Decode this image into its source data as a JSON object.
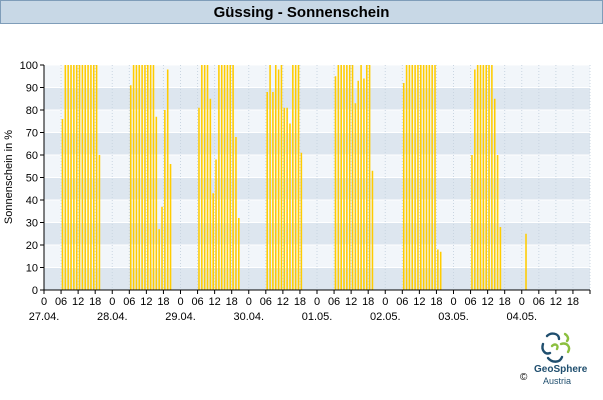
{
  "header": {
    "title": "Güssing - Sonnenschein"
  },
  "logo": {
    "name": "GeoSphere",
    "sub": "Austria",
    "copyright": "©"
  },
  "colors": {
    "bar": "#ffcc00",
    "band_light": "#f2f6fa",
    "band_dark": "#dde6ef",
    "header_bg": "#c8d8e6"
  },
  "chart_data": {
    "type": "bar",
    "title": "Güssing - Sonnenschein",
    "ylabel": "Sonnenschein in %",
    "xlabel": "",
    "ylim": [
      0,
      100
    ],
    "yticks": [
      0,
      10,
      20,
      30,
      40,
      50,
      60,
      70,
      80,
      90,
      100
    ],
    "hour_ticks": [
      "0",
      "06",
      "12",
      "18"
    ],
    "days": [
      "27.04.",
      "28.04.",
      "29.04.",
      "30.04.",
      "01.05.",
      "02.05.",
      "03.05.",
      "04.05."
    ],
    "step_hours": 1,
    "values": [
      0,
      0,
      0,
      0,
      0,
      0,
      76,
      100,
      100,
      100,
      100,
      100,
      100,
      100,
      100,
      100,
      100,
      100,
      100,
      60,
      0,
      0,
      0,
      0,
      0,
      0,
      0,
      0,
      0,
      0,
      91,
      100,
      100,
      100,
      100,
      100,
      100,
      100,
      100,
      77,
      27,
      37,
      80,
      98,
      56,
      0,
      0,
      0,
      0,
      0,
      0,
      0,
      0,
      0,
      81,
      100,
      100,
      100,
      85,
      43,
      58,
      100,
      100,
      100,
      100,
      100,
      100,
      68,
      32,
      0,
      0,
      0,
      0,
      0,
      0,
      0,
      0,
      0,
      88,
      100,
      88,
      100,
      98,
      100,
      81,
      81,
      74,
      100,
      100,
      100,
      61,
      0,
      0,
      0,
      0,
      0,
      0,
      0,
      0,
      0,
      0,
      0,
      95,
      100,
      100,
      100,
      100,
      100,
      100,
      83,
      93,
      100,
      94,
      100,
      100,
      53,
      0,
      0,
      0,
      0,
      0,
      0,
      0,
      0,
      0,
      0,
      92,
      100,
      100,
      100,
      100,
      100,
      100,
      100,
      100,
      100,
      100,
      100,
      18,
      17,
      0,
      0,
      0,
      0,
      0,
      0,
      0,
      0,
      0,
      0,
      60,
      98,
      100,
      100,
      100,
      100,
      100,
      100,
      85,
      60,
      28,
      0,
      0,
      0,
      0,
      0,
      0,
      0,
      0,
      25
    ]
  }
}
